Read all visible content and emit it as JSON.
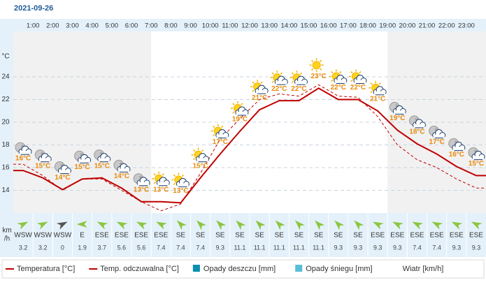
{
  "chart_data": {
    "type": "line",
    "title": "2021-09-26",
    "categories": [
      null,
      "1:00",
      "2:00",
      "3:00",
      "4:00",
      "5:00",
      "6:00",
      "7:00",
      "8:00",
      "9:00",
      "10:00",
      "11:00",
      "12:00",
      "13:00",
      "14:00",
      "15:00",
      "16:00",
      "17:00",
      "18:00",
      "19:00",
      "20:00",
      "21:00",
      "22:00",
      "23:00"
    ],
    "y_unit": "°C",
    "ylim": [
      12,
      28
    ],
    "yticks": [
      14,
      16,
      18,
      20,
      22,
      24
    ],
    "grid": true,
    "series": [
      {
        "name": "Temperatura [°C]",
        "color": "#c00000",
        "values": [
          15.75,
          15.1,
          14.06,
          15,
          15.1,
          14.2,
          13,
          13,
          12.9,
          15.1,
          17.2,
          19.2,
          21.1,
          21.9,
          21.9,
          23,
          22,
          22,
          21,
          19.3,
          18.1,
          17.2,
          16.1,
          15.3
        ],
        "value_labels": [
          "16°C",
          "15°C",
          "14°C",
          "15°C",
          "15°C",
          "14°C",
          "13°C",
          "13°C",
          "13°C",
          "15°C",
          "17°C",
          "19°C",
          "21°C",
          "22°C",
          "22°C",
          "23°C",
          "22°C",
          "22°C",
          "21°C",
          "19°C",
          "18°C",
          "17°C",
          "16°C",
          "15°C"
        ]
      },
      {
        "name": "Temp. odczuwalna [°C]",
        "color": "#c00000",
        "dashed": true,
        "values": [
          16.3,
          15.3,
          14,
          15,
          15,
          14,
          13,
          12.2,
          12.8,
          15.5,
          18.5,
          20.3,
          22,
          22.5,
          22.3,
          23.3,
          22.3,
          22.2,
          20.5,
          18,
          16.7,
          16,
          15,
          14.2
        ]
      }
    ],
    "wind": {
      "unit": [
        "km",
        "/h"
      ],
      "directions": [
        "WSW",
        "WSW",
        "WSW",
        "E",
        "ESE",
        "ESE",
        "ESE",
        "ESE",
        "SE",
        "SE",
        "SE",
        "SE",
        "SE",
        "SE",
        "SE",
        "SE",
        "SE",
        "SE",
        "ESE",
        "ESE",
        "ESE",
        "ESE",
        "ESE",
        "ESE"
      ],
      "speeds": [
        3.2,
        3.2,
        0,
        1.9,
        3.7,
        5.6,
        5.6,
        7.4,
        7.4,
        7.4,
        9.3,
        11.1,
        11.1,
        11.1,
        11.1,
        11.1,
        9.3,
        9.3,
        9.3,
        9.3,
        7.4,
        7.4,
        9.3,
        9.3
      ]
    },
    "legend_extra": [
      {
        "name": "Opady deszczu [mm]",
        "color": "#0a8fb0"
      },
      {
        "name": "Opady śniegu [mm]",
        "color": "#5bbcd8"
      },
      {
        "name": "Wiatr [km/h]",
        "color": "#2a4a6a"
      }
    ]
  }
}
